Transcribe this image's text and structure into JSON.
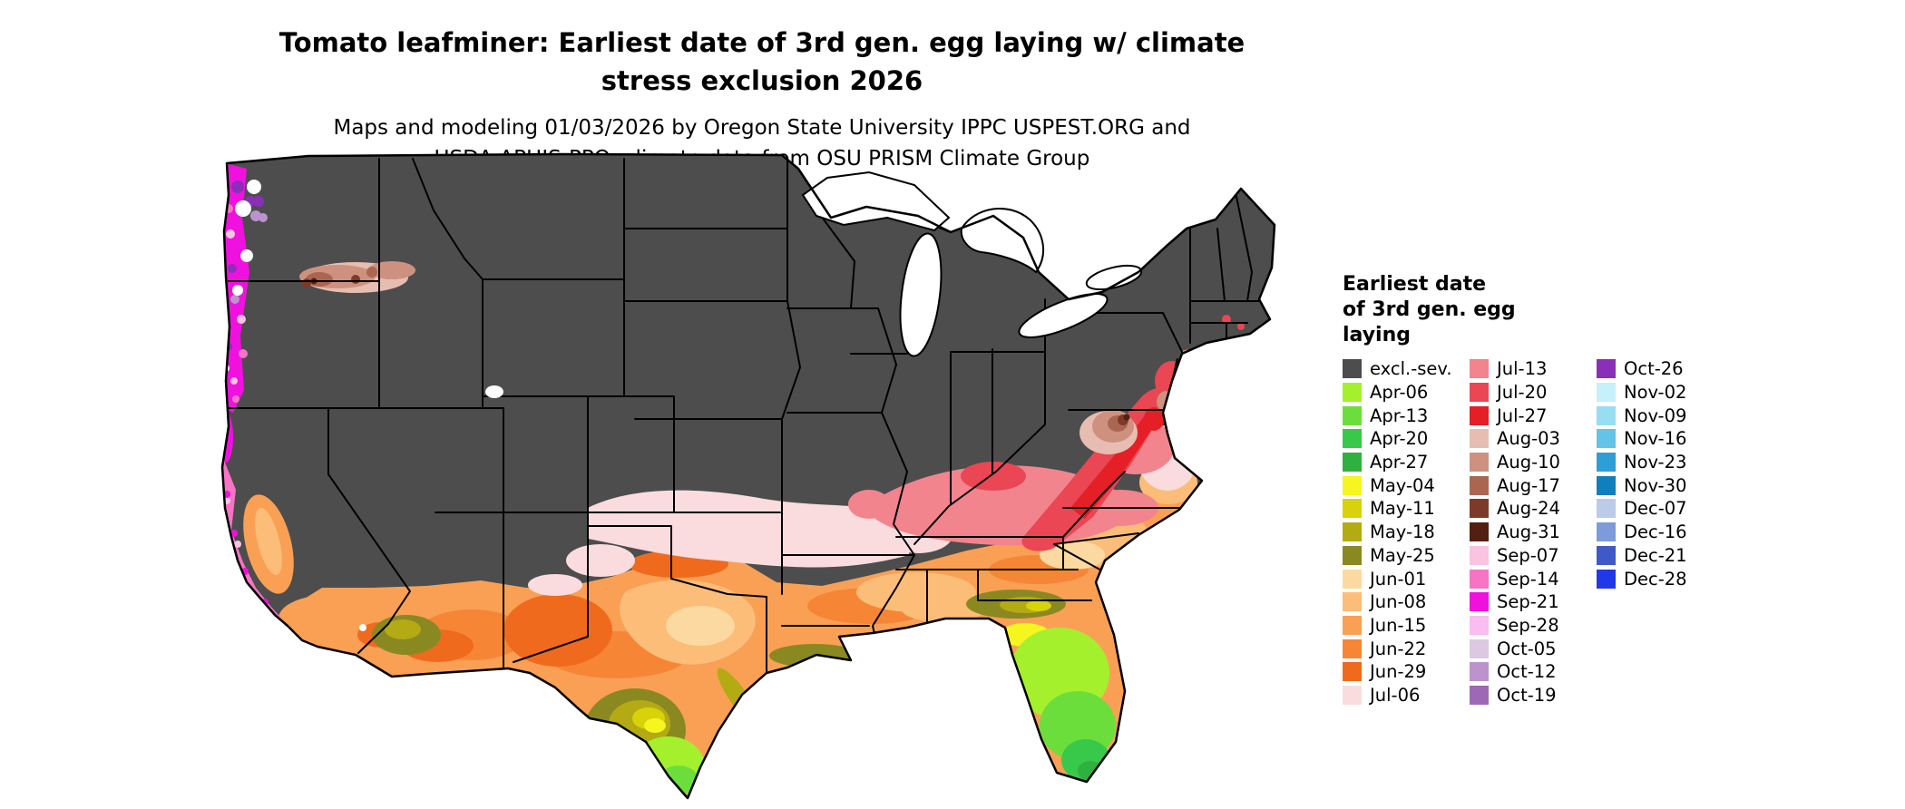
{
  "title": {
    "line1": "Tomato leafminer: Earliest date of 3rd gen. egg laying w/ climate",
    "line2": "stress exclusion 2026"
  },
  "subtitle": {
    "line1": "Maps and modeling 01/03/2026 by Oregon State University IPPC USPEST.ORG and",
    "line2": "USDA-APHIS-PPQ; climate data from OSU PRISM Climate Group"
  },
  "legend": {
    "title_lines": [
      "Earliest date",
      "of 3rd gen. egg",
      "laying"
    ],
    "columns": [
      [
        {
          "label": "excl.-sev.",
          "color": "#4D4D4D"
        },
        {
          "label": "Apr-06",
          "color": "#A5F02D"
        },
        {
          "label": "Apr-13",
          "color": "#6CDE3C"
        },
        {
          "label": "Apr-20",
          "color": "#38C84A"
        },
        {
          "label": "Apr-27",
          "color": "#2FB13F"
        },
        {
          "label": "May-04",
          "color": "#F5F51F"
        },
        {
          "label": "May-11",
          "color": "#D8D20A"
        },
        {
          "label": "May-18",
          "color": "#B3AA14"
        },
        {
          "label": "May-25",
          "color": "#8A8921"
        },
        {
          "label": "Jun-01",
          "color": "#FCD9A0"
        },
        {
          "label": "Jun-08",
          "color": "#FBBD78"
        },
        {
          "label": "Jun-15",
          "color": "#F9A055"
        },
        {
          "label": "Jun-22",
          "color": "#F68636"
        },
        {
          "label": "Jun-29",
          "color": "#F06A1D"
        },
        {
          "label": "Jul-06",
          "color": "#FADCDF"
        }
      ],
      [
        {
          "label": "Jul-13",
          "color": "#F2848E"
        },
        {
          "label": "Jul-20",
          "color": "#EA4653"
        },
        {
          "label": "Jul-27",
          "color": "#E41F26"
        },
        {
          "label": "Aug-03",
          "color": "#E7BDB2"
        },
        {
          "label": "Aug-10",
          "color": "#CE9180"
        },
        {
          "label": "Aug-17",
          "color": "#AB6652"
        },
        {
          "label": "Aug-24",
          "color": "#7E3A28"
        },
        {
          "label": "Aug-31",
          "color": "#531F10"
        },
        {
          "label": "Sep-07",
          "color": "#FAC3DF"
        },
        {
          "label": "Sep-14",
          "color": "#F773C4"
        },
        {
          "label": "Sep-21",
          "color": "#F011DE"
        },
        {
          "label": "Sep-28",
          "color": "#F9BDEF"
        },
        {
          "label": "Oct-05",
          "color": "#DCC8E0"
        },
        {
          "label": "Oct-12",
          "color": "#BC93CE"
        },
        {
          "label": "Oct-19",
          "color": "#9F68B6"
        }
      ],
      [
        {
          "label": "Oct-26",
          "color": "#8A2FB8"
        },
        {
          "label": "Nov-02",
          "color": "#C6F0FA"
        },
        {
          "label": "Nov-09",
          "color": "#97DEF3"
        },
        {
          "label": "Nov-16",
          "color": "#64C3E8"
        },
        {
          "label": "Nov-23",
          "color": "#2D9FD6"
        },
        {
          "label": "Nov-30",
          "color": "#0F7FBE"
        },
        {
          "label": "Dec-07",
          "color": "#BCCBE8"
        },
        {
          "label": "Dec-16",
          "color": "#7D9ADB"
        },
        {
          "label": "Dec-21",
          "color": "#4059C8"
        },
        {
          "label": "Dec-28",
          "color": "#2038E8"
        }
      ]
    ]
  }
}
